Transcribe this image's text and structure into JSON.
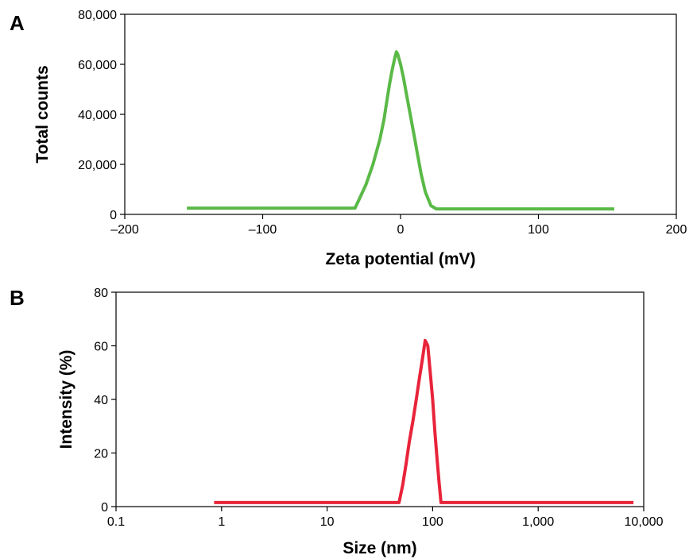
{
  "chart_data": [
    {
      "panel": "A",
      "type": "line",
      "xlabel": "Zeta potential (mV)",
      "ylabel": "Total counts",
      "xlim": [
        -200,
        200
      ],
      "ylim": [
        0,
        80000
      ],
      "xticks": [
        -200,
        -100,
        0,
        100,
        200
      ],
      "xtick_labels": [
        "–200",
        "–100",
        "0",
        "100",
        "200"
      ],
      "yticks": [
        0,
        20000,
        40000,
        60000,
        80000
      ],
      "ytick_labels": [
        "0",
        "20,000",
        "40,000",
        "60,000",
        "80,000"
      ],
      "x_scale": "linear",
      "grid": false,
      "series": [
        {
          "color": "#5ab947",
          "x": [
            -155,
            -33,
            -30,
            -25,
            -20,
            -15,
            -12,
            -10,
            -8,
            -6,
            -4,
            -3,
            -2,
            0,
            2,
            4,
            6,
            8,
            10,
            12,
            15,
            18,
            22,
            26,
            155
          ],
          "y": [
            2500,
            2500,
            6000,
            12000,
            20000,
            30000,
            38000,
            45000,
            52000,
            58000,
            63000,
            65000,
            64000,
            60000,
            55000,
            49000,
            43000,
            37000,
            31000,
            25000,
            16000,
            9000,
            3500,
            2200,
            2200
          ]
        }
      ]
    },
    {
      "panel": "B",
      "type": "line",
      "xlabel": "Size (nm)",
      "ylabel": "Intensity (%)",
      "xlim": [
        0.1,
        10000
      ],
      "ylim": [
        0,
        80
      ],
      "xticks": [
        0.1,
        1,
        10,
        100,
        1000,
        10000
      ],
      "xtick_labels": [
        "0.1",
        "1",
        "10",
        "100",
        "1,000",
        "10,000"
      ],
      "yticks": [
        0,
        20,
        40,
        60,
        80
      ],
      "ytick_labels": [
        "0",
        "20",
        "40",
        "60",
        "80"
      ],
      "x_scale": "log",
      "grid": false,
      "series": [
        {
          "color": "#e8243a",
          "x": [
            0.85,
            48,
            52,
            56,
            60,
            65,
            70,
            75,
            80,
            85,
            90,
            95,
            100,
            105,
            110,
            115,
            120,
            8000
          ],
          "y": [
            1.5,
            1.5,
            8,
            16,
            24,
            32,
            40,
            48,
            55,
            62,
            60,
            50,
            40,
            28,
            18,
            9,
            1.5,
            1.5
          ]
        }
      ]
    }
  ]
}
